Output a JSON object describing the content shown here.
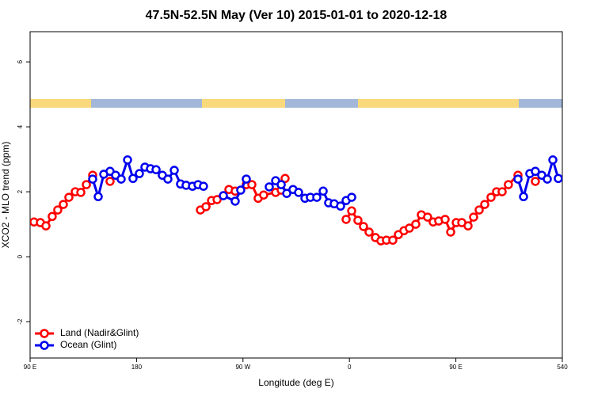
{
  "chart_data": {
    "type": "line",
    "title": "47.5N-52.5N May (Ver 10)   2015-01-01 to 2020-12-18",
    "x_label": "Longitude (deg E)",
    "y_label": "XCO2 - MLO trend (ppm)",
    "xlim": [
      90,
      540
    ],
    "ylim": [
      -3.12,
      6.93
    ],
    "xticks": [
      {
        "value": 90,
        "label": "90 E"
      },
      180,
      {
        "value": 270,
        "label": "90 W"
      },
      {
        "value": 360,
        "label": "0"
      },
      {
        "value": 450,
        "label": "90 E"
      },
      540
    ],
    "yticks": [
      -2,
      0,
      2,
      4,
      6
    ],
    "legend": "bottom-left",
    "series": [
      {
        "name": "Land (Nadir&Glint)",
        "color": "#ff0000",
        "x": [
          93.3,
          98.7,
          103.4,
          108.7,
          113.4,
          118.1,
          122.8,
          128.2,
          132.9,
          137.6,
          142.9,
          null,
          157.6,
          null,
          234,
          238.7,
          243.4,
          248.1,
          258.1,
          263.4,
          272.8,
          277.5,
          282.8,
          287.5,
          297.6,
          302.3,
          305.6,
          null,
          357.2,
          361.9,
          367.2,
          371.9,
          376.6,
          382.0,
          386.6,
          391.3,
          396.7,
          401.4,
          406.1,
          410.7,
          416.1,
          420.8,
          426.1,
          430.8,
          435.5,
          440.9,
          445.6,
          450.3,
          455.0,
          460.3,
          465.0,
          469.7,
          474.4,
          479.7,
          484.4,
          489.1,
          494.4,
          502.5,
          null,
          517.2
        ],
        "values": [
          1.07,
          1.05,
          0.95,
          1.24,
          1.44,
          1.61,
          1.83,
          2.0,
          1.98,
          2.22,
          2.51,
          null,
          2.32,
          null,
          1.44,
          1.54,
          1.73,
          1.76,
          2.07,
          2.02,
          2.22,
          2.22,
          1.8,
          1.9,
          1.98,
          2.05,
          2.41,
          null,
          1.15,
          1.41,
          1.12,
          0.93,
          0.76,
          0.59,
          0.49,
          0.51,
          0.51,
          0.68,
          0.8,
          0.88,
          1.0,
          1.29,
          1.22,
          1.07,
          1.1,
          1.15,
          0.76,
          1.05,
          1.05,
          0.95,
          1.22,
          1.44,
          1.61,
          1.83,
          2.0,
          2.0,
          2.22,
          2.51,
          null,
          2.32
        ]
      },
      {
        "name": "Ocean (Glint)",
        "color": "#0000ee",
        "x": [
          142.9,
          147.6,
          152.3,
          157.6,
          162.3,
          167.0,
          172.4,
          177.0,
          182.4,
          187.1,
          191.8,
          196.5,
          201.8,
          206.5,
          211.9,
          217.2,
          221.9,
          227.3,
          232.0,
          236.6,
          null,
          253.4,
          263.4,
          268.1,
          272.8,
          null,
          292.2,
          297.6,
          302.3,
          307.0,
          312.3,
          317.0,
          322.4,
          327.0,
          332.4,
          337.8,
          342.4,
          347.1,
          352.5,
          357.2,
          361.9,
          null,
          502.5,
          507.2,
          512.5,
          517.2,
          522.6,
          527.3,
          532.0,
          536.6
        ],
        "values": [
          2.39,
          1.85,
          2.54,
          2.63,
          2.51,
          2.39,
          2.98,
          2.41,
          2.56,
          2.76,
          2.71,
          2.68,
          2.51,
          2.39,
          2.66,
          2.24,
          2.2,
          2.17,
          2.22,
          2.17,
          null,
          1.88,
          1.71,
          2.05,
          2.39,
          null,
          2.15,
          2.34,
          2.22,
          1.95,
          2.07,
          1.98,
          1.8,
          1.83,
          1.83,
          2.02,
          1.66,
          1.63,
          1.56,
          1.73,
          1.83,
          null,
          2.39,
          1.85,
          2.56,
          2.63,
          2.51,
          2.39,
          2.98,
          2.41
        ]
      }
    ]
  }
}
